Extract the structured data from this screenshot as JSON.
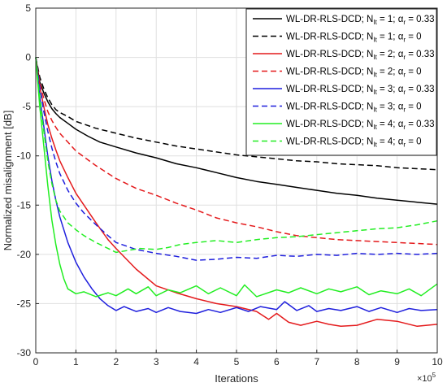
{
  "chart_data": {
    "type": "line",
    "title": "",
    "xlabel": "Iterations",
    "ylabel": "Normalized misalignment [dB]",
    "x_exponent": "×10",
    "x_exponent_power": "5",
    "xlim": [
      0,
      10
    ],
    "ylim": [
      -30,
      5
    ],
    "xticks": [
      0,
      1,
      2,
      3,
      4,
      5,
      6,
      7,
      8,
      9,
      10
    ],
    "yticks": [
      5,
      0,
      -5,
      -10,
      -15,
      -20,
      -25,
      -30
    ],
    "grid": true,
    "legend_position": "top-right",
    "series": [
      {
        "name": "WL-DR-RLS-DCD; N_It = 1; α_r = 0.33",
        "legend": {
          "prefix": "WL-DR-RLS-DCD; N",
          "sub1": "It",
          "mid": " = 1; α",
          "sub2": "r",
          "suffix": " = 0.33"
        },
        "color": "#000000",
        "dash": "solid",
        "x": [
          0,
          0.1,
          0.2,
          0.3,
          0.4,
          0.5,
          0.6,
          0.8,
          1.0,
          1.3,
          1.6,
          2.0,
          2.5,
          3.0,
          3.5,
          4.0,
          4.5,
          5.0,
          5.5,
          6.0,
          6.5,
          7.0,
          7.5,
          8.0,
          8.5,
          9.0,
          9.5,
          10.0
        ],
        "y": [
          0,
          -2.5,
          -3.6,
          -4.5,
          -5.2,
          -5.7,
          -6.1,
          -6.7,
          -7.3,
          -8.0,
          -8.6,
          -9.1,
          -9.7,
          -10.2,
          -10.8,
          -11.2,
          -11.7,
          -12.2,
          -12.6,
          -12.9,
          -13.2,
          -13.5,
          -13.8,
          -14.0,
          -14.3,
          -14.5,
          -14.7,
          -14.9
        ]
      },
      {
        "name": "WL-DR-RLS-DCD; N_It = 1; α_r = 0",
        "legend": {
          "prefix": "WL-DR-RLS-DCD; N",
          "sub1": "It",
          "mid": " = 1; α",
          "sub2": "r",
          "suffix": " = 0"
        },
        "color": "#000000",
        "dash": "dashed",
        "x": [
          0,
          0.1,
          0.2,
          0.3,
          0.4,
          0.5,
          0.6,
          0.8,
          1.0,
          1.5,
          2.0,
          2.5,
          3.0,
          3.5,
          4.0,
          4.5,
          5.0,
          5.5,
          6.0,
          6.5,
          7.0,
          7.5,
          8.0,
          8.5,
          9.0,
          9.5,
          10.0
        ],
        "y": [
          0,
          -2.0,
          -3.2,
          -4.1,
          -4.8,
          -5.3,
          -5.6,
          -6.0,
          -6.5,
          -7.2,
          -7.7,
          -8.2,
          -8.6,
          -9.0,
          -9.3,
          -9.6,
          -9.9,
          -10.1,
          -10.3,
          -10.5,
          -10.6,
          -10.8,
          -10.9,
          -11.0,
          -11.2,
          -11.3,
          -11.4
        ]
      },
      {
        "name": "WL-DR-RLS-DCD; N_It = 2; α_r = 0.33",
        "legend": {
          "prefix": "WL-DR-RLS-DCD; N",
          "sub1": "It",
          "mid": " = 2; α",
          "sub2": "r",
          "suffix": " = 0.33"
        },
        "color": "#e41a1c",
        "dash": "solid",
        "x": [
          0,
          0.1,
          0.2,
          0.3,
          0.4,
          0.5,
          0.6,
          0.8,
          1.0,
          1.2,
          1.5,
          1.8,
          2.0,
          2.5,
          3.0,
          3.5,
          4.0,
          4.5,
          5.0,
          5.5,
          5.8,
          6.0,
          6.3,
          6.6,
          7.0,
          7.3,
          7.6,
          8.0,
          8.5,
          9.0,
          9.5,
          10.0
        ],
        "y": [
          0,
          -3.0,
          -5.0,
          -6.8,
          -8.2,
          -9.4,
          -10.5,
          -12.2,
          -13.8,
          -15.0,
          -16.8,
          -18.5,
          -19.4,
          -21.5,
          -23.2,
          -23.9,
          -24.5,
          -25.0,
          -25.3,
          -25.8,
          -26.6,
          -26.0,
          -26.9,
          -27.2,
          -26.8,
          -27.1,
          -27.3,
          -27.2,
          -26.6,
          -26.8,
          -27.3,
          -27.1
        ]
      },
      {
        "name": "WL-DR-RLS-DCD; N_It = 2; α_r = 0",
        "legend": {
          "prefix": "WL-DR-RLS-DCD; N",
          "sub1": "It",
          "mid": " = 2; α",
          "sub2": "r",
          "suffix": " = 0"
        },
        "color": "#e41a1c",
        "dash": "dashed",
        "x": [
          0,
          0.1,
          0.2,
          0.3,
          0.4,
          0.5,
          0.6,
          0.8,
          1.0,
          1.5,
          2.0,
          2.5,
          3.0,
          3.5,
          4.0,
          4.5,
          5.0,
          5.5,
          6.0,
          6.5,
          7.0,
          7.5,
          8.0,
          8.5,
          9.0,
          9.5,
          10.0
        ],
        "y": [
          0,
          -2.5,
          -4.2,
          -5.5,
          -6.4,
          -7.1,
          -7.7,
          -8.6,
          -9.5,
          -11.0,
          -12.3,
          -13.3,
          -14.0,
          -14.8,
          -15.5,
          -16.3,
          -16.8,
          -17.2,
          -17.7,
          -18.1,
          -18.3,
          -18.5,
          -18.6,
          -18.7,
          -18.8,
          -18.9,
          -19.0
        ]
      },
      {
        "name": "WL-DR-RLS-DCD; N_It = 3; α_r = 0.33",
        "legend": {
          "prefix": "WL-DR-RLS-DCD; N",
          "sub1": "It",
          "mid": " = 3; α",
          "sub2": "r",
          "suffix": " = 0.33"
        },
        "color": "#1f1fdd",
        "dash": "solid",
        "x": [
          0,
          0.1,
          0.2,
          0.3,
          0.4,
          0.5,
          0.6,
          0.8,
          1.0,
          1.2,
          1.4,
          1.6,
          1.8,
          2.0,
          2.2,
          2.5,
          2.8,
          3.0,
          3.3,
          3.6,
          4.0,
          4.3,
          4.6,
          5.0,
          5.3,
          5.6,
          6.0,
          6.2,
          6.5,
          6.8,
          7.0,
          7.3,
          7.6,
          8.0,
          8.3,
          8.6,
          9.0,
          9.3,
          9.6,
          10.0
        ],
        "y": [
          0,
          -4.0,
          -7.0,
          -10.0,
          -12.5,
          -14.5,
          -16.2,
          -18.8,
          -20.8,
          -22.3,
          -23.5,
          -24.5,
          -25.2,
          -25.7,
          -25.3,
          -25.8,
          -25.5,
          -25.9,
          -25.4,
          -25.8,
          -26.0,
          -25.6,
          -25.9,
          -25.4,
          -25.8,
          -25.3,
          -25.6,
          -24.8,
          -25.7,
          -25.2,
          -25.8,
          -25.5,
          -25.7,
          -25.3,
          -25.8,
          -25.4,
          -25.9,
          -25.5,
          -25.7,
          -25.6
        ]
      },
      {
        "name": "WL-DR-RLS-DCD; N_It = 3; α_r = 0",
        "legend": {
          "prefix": "WL-DR-RLS-DCD; N",
          "sub1": "It",
          "mid": " = 3; α",
          "sub2": "r",
          "suffix": " = 0"
        },
        "color": "#1f1fdd",
        "dash": "dashed",
        "x": [
          0,
          0.1,
          0.2,
          0.3,
          0.4,
          0.5,
          0.6,
          0.8,
          1.0,
          1.2,
          1.5,
          1.8,
          2.0,
          2.5,
          3.0,
          3.5,
          4.0,
          4.5,
          5.0,
          5.5,
          6.0,
          6.5,
          7.0,
          7.5,
          8.0,
          8.5,
          9.0,
          9.5,
          10.0
        ],
        "y": [
          0,
          -3.0,
          -5.5,
          -7.5,
          -9.2,
          -10.6,
          -11.8,
          -13.5,
          -14.8,
          -15.8,
          -17.0,
          -18.1,
          -18.8,
          -19.5,
          -19.9,
          -20.2,
          -20.6,
          -20.5,
          -20.3,
          -20.4,
          -20.1,
          -20.2,
          -20.0,
          -20.1,
          -19.9,
          -20.0,
          -19.9,
          -20.0,
          -19.9
        ]
      },
      {
        "name": "WL-DR-RLS-DCD; N_It = 4; α_r = 0.33",
        "legend": {
          "prefix": "WL-DR-RLS-DCD; N",
          "sub1": "It",
          "mid": " = 4; α",
          "sub2": "r",
          "suffix": " = 0.33"
        },
        "color": "#22ee22",
        "dash": "solid",
        "x": [
          0,
          0.1,
          0.2,
          0.3,
          0.4,
          0.5,
          0.6,
          0.7,
          0.8,
          1.0,
          1.2,
          1.5,
          1.8,
          2.0,
          2.3,
          2.5,
          2.8,
          3.0,
          3.3,
          3.6,
          4.0,
          4.3,
          4.6,
          5.0,
          5.2,
          5.5,
          6.0,
          6.3,
          6.6,
          7.0,
          7.3,
          7.6,
          8.0,
          8.3,
          8.6,
          9.0,
          9.3,
          9.6,
          10.0
        ],
        "y": [
          0,
          -5.0,
          -9.0,
          -13.0,
          -16.5,
          -19.0,
          -21.0,
          -22.5,
          -23.5,
          -24.0,
          -23.8,
          -24.3,
          -23.9,
          -24.2,
          -23.5,
          -24.0,
          -23.3,
          -24.2,
          -23.6,
          -23.9,
          -23.2,
          -24.0,
          -23.4,
          -24.2,
          -23.1,
          -24.3,
          -23.6,
          -23.9,
          -23.4,
          -24.0,
          -23.5,
          -23.8,
          -23.3,
          -24.1,
          -23.7,
          -24.0,
          -23.5,
          -24.2,
          -23.0
        ]
      },
      {
        "name": "WL-DR-RLS-DCD; N_It = 4; α_r = 0",
        "legend": {
          "prefix": "WL-DR-RLS-DCD; N",
          "sub1": "It",
          "mid": " = 4; α",
          "sub2": "r",
          "suffix": " = 0"
        },
        "color": "#22ee22",
        "dash": "dashed",
        "x": [
          0,
          0.1,
          0.2,
          0.3,
          0.4,
          0.5,
          0.6,
          0.8,
          1.0,
          1.2,
          1.5,
          1.8,
          2.0,
          2.3,
          2.6,
          3.0,
          3.3,
          3.6,
          4.0,
          4.5,
          5.0,
          5.5,
          6.0,
          6.5,
          7.0,
          7.5,
          8.0,
          8.5,
          9.0,
          9.5,
          10.0
        ],
        "y": [
          0,
          -4.0,
          -7.5,
          -10.5,
          -12.8,
          -14.5,
          -15.6,
          -16.8,
          -17.5,
          -18.1,
          -18.8,
          -19.4,
          -19.8,
          -19.6,
          -19.4,
          -19.5,
          -19.3,
          -19.0,
          -18.8,
          -18.6,
          -18.8,
          -18.5,
          -18.3,
          -18.2,
          -18.0,
          -17.8,
          -17.6,
          -17.4,
          -17.3,
          -17.0,
          -16.6
        ]
      }
    ]
  }
}
